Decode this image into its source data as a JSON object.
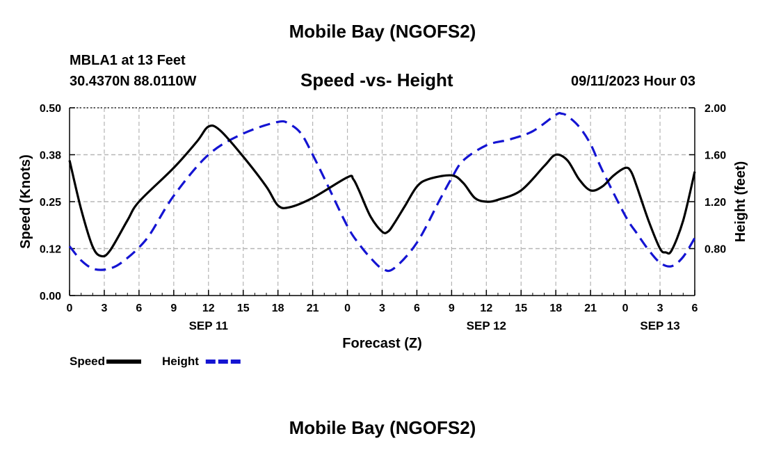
{
  "header": {
    "title": "Mobile Bay (NGOFS2)",
    "station": "MBLA1 at 13 Feet",
    "coordinates": "30.4370N  88.0110W",
    "subtitle": "Speed -vs- Height",
    "timestamp": "09/11/2023 Hour 03"
  },
  "footer": {
    "title": "Mobile Bay (NGOFS2)"
  },
  "chart_data": {
    "type": "line",
    "xlabel": "Forecast (Z)",
    "ylabel_left": "Speed (Knots)",
    "ylabel_right": "Height (feet)",
    "x_unit": "hours from 2023-09-11 00Z",
    "xlim": [
      0,
      54
    ],
    "x_ticks": [
      0,
      3,
      6,
      9,
      12,
      15,
      18,
      21,
      24,
      27,
      30,
      33,
      36,
      39,
      42,
      45,
      48,
      51,
      54
    ],
    "x_tick_labels": [
      "0",
      "3",
      "6",
      "9",
      "12",
      "15",
      "18",
      "21",
      "0",
      "3",
      "6",
      "9",
      "12",
      "15",
      "18",
      "21",
      "0",
      "3",
      "6"
    ],
    "date_labels": [
      {
        "x": 12,
        "label": "SEP 11"
      },
      {
        "x": 36,
        "label": "SEP 12"
      },
      {
        "x": 51,
        "label": "SEP 13"
      }
    ],
    "ylim_left": [
      0,
      0.5
    ],
    "y_ticks_left": [
      0,
      0.125,
      0.25,
      0.375,
      0.5
    ],
    "y_tick_labels_left": [
      "0.00",
      "0.12",
      "0.25",
      "0.38",
      "0.50"
    ],
    "ylim_right": [
      0.4,
      2.0
    ],
    "y_ticks_right": [
      0.8,
      1.2,
      1.6,
      2.0
    ],
    "y_tick_labels_right": [
      "0.80",
      "1.20",
      "1.60",
      "2.00"
    ],
    "grid": true,
    "legend": [
      {
        "name": "Speed",
        "color": "#000000",
        "style": "solid"
      },
      {
        "name": "Height",
        "color": "#1414d2",
        "style": "dashed"
      }
    ],
    "series": [
      {
        "name": "Speed",
        "axis": "left",
        "color": "#000000",
        "style": "solid",
        "x": [
          0,
          1,
          2,
          2.75,
          3.5,
          5,
          6,
          9,
          11,
          12,
          13,
          15,
          17,
          18,
          19,
          21,
          24,
          24.5,
          25,
          26,
          27,
          27.5,
          28,
          29,
          30,
          31,
          33,
          34,
          35,
          36,
          37,
          39,
          41,
          42,
          43,
          44,
          45,
          46,
          47,
          48,
          48.5,
          49,
          50,
          51,
          51.5,
          52,
          53,
          54
        ],
        "y": [
          0.36,
          0.23,
          0.13,
          0.105,
          0.12,
          0.2,
          0.25,
          0.34,
          0.41,
          0.45,
          0.44,
          0.37,
          0.29,
          0.24,
          0.235,
          0.26,
          0.315,
          0.31,
          0.28,
          0.21,
          0.17,
          0.17,
          0.19,
          0.24,
          0.29,
          0.31,
          0.32,
          0.3,
          0.26,
          0.25,
          0.255,
          0.28,
          0.345,
          0.375,
          0.36,
          0.31,
          0.28,
          0.29,
          0.32,
          0.34,
          0.33,
          0.29,
          0.2,
          0.125,
          0.115,
          0.12,
          0.2,
          0.33
        ]
      },
      {
        "name": "Height",
        "axis": "right",
        "color": "#1414d2",
        "style": "dashed",
        "x": [
          0,
          1,
          2,
          3,
          4,
          5,
          6,
          7,
          9,
          12,
          15,
          18,
          19,
          20,
          21,
          22,
          24,
          25,
          26,
          27,
          28,
          30,
          32,
          33,
          34,
          36,
          38,
          40,
          42,
          42.5,
          43,
          44,
          45,
          46,
          48,
          49,
          50,
          51,
          52,
          53,
          54
        ],
        "y": [
          0.82,
          0.7,
          0.63,
          0.62,
          0.65,
          0.72,
          0.81,
          0.93,
          1.25,
          1.6,
          1.78,
          1.88,
          1.86,
          1.78,
          1.6,
          1.4,
          0.99,
          0.84,
          0.72,
          0.63,
          0.63,
          0.85,
          1.22,
          1.4,
          1.55,
          1.68,
          1.73,
          1.8,
          1.94,
          1.95,
          1.93,
          1.84,
          1.69,
          1.47,
          1.08,
          0.93,
          0.79,
          0.68,
          0.65,
          0.73,
          0.89
        ]
      }
    ]
  }
}
